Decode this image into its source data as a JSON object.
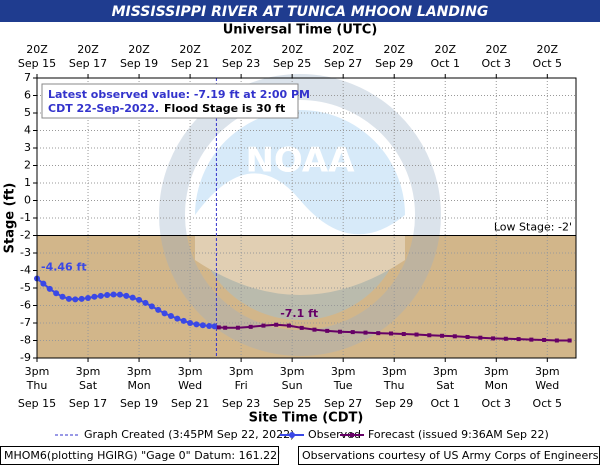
{
  "chart_data": {
    "type": "line",
    "title": "MISSISSIPPI RIVER AT TUNICA MHOON LANDING",
    "top_axis_label": "Universal Time (UTC)",
    "x_label": "Site Time (CDT)",
    "y_label": "Stage (ft)",
    "xlim": [
      "2022-09-15T15:00",
      "2022-10-06T18:00"
    ],
    "xticks": [
      {
        "value": "2022-09-15T15:00",
        "label": "3pm",
        "weekday": "Thu",
        "date": "Sep 15",
        "utc": "20Z"
      },
      {
        "value": "2022-09-17T15:00",
        "label": "3pm",
        "weekday": "Sat",
        "date": "Sep 17",
        "utc": "20Z"
      },
      {
        "value": "2022-09-19T15:00",
        "label": "3pm",
        "weekday": "Mon",
        "date": "Sep 19",
        "utc": "20Z"
      },
      {
        "value": "2022-09-21T15:00",
        "label": "3pm",
        "weekday": "Wed",
        "date": "Sep 21",
        "utc": "20Z"
      },
      {
        "value": "2022-09-23T15:00",
        "label": "3pm",
        "weekday": "Fri",
        "date": "Sep 23",
        "utc": "20Z"
      },
      {
        "value": "2022-09-25T15:00",
        "label": "3pm",
        "weekday": "Sun",
        "date": "Sep 25",
        "utc": "20Z"
      },
      {
        "value": "2022-09-27T15:00",
        "label": "3pm",
        "weekday": "Tue",
        "date": "Sep 27",
        "utc": "20Z"
      },
      {
        "value": "2022-09-29T15:00",
        "label": "3pm",
        "weekday": "Thu",
        "date": "Sep 29",
        "utc": "20Z"
      },
      {
        "value": "2022-10-01T15:00",
        "label": "3pm",
        "weekday": "Sat",
        "date": "Oct 1",
        "utc": "20Z"
      },
      {
        "value": "2022-10-03T15:00",
        "label": "3pm",
        "weekday": "Mon",
        "date": "Oct 3",
        "utc": "20Z"
      },
      {
        "value": "2022-10-05T15:00",
        "label": "3pm",
        "weekday": "Wed",
        "date": "Oct 5",
        "utc": "20Z"
      }
    ],
    "ylim": [
      -9,
      7
    ],
    "yticks": [
      7,
      6,
      5,
      4,
      3,
      2,
      1,
      0,
      -1,
      -2,
      -3,
      -4,
      -5,
      -6,
      -7,
      -8,
      -9
    ],
    "grid": true,
    "threshold": {
      "value": -2,
      "label": "Low Stage: -2'",
      "color": "#d2b68a"
    },
    "created": {
      "x": "2022-09-22T15:45",
      "label": "Graph Created (3:45PM Sep 22, 2022)",
      "color": "#3333cc"
    },
    "info": {
      "line1": "Latest observed value: -7.19 ft at 2:00 PM",
      "line2": "CDT 22-Sep-2022.",
      "line3": "Flood Stage is 30 ft"
    },
    "logo": "NOAA",
    "series": [
      {
        "name": "Observed",
        "color": "#3a48e6",
        "marker": "circle",
        "x": [
          "2022-09-15T15:00",
          "2022-09-15T21:00",
          "2022-09-16T03:00",
          "2022-09-16T09:00",
          "2022-09-16T15:00",
          "2022-09-16T21:00",
          "2022-09-17T03:00",
          "2022-09-17T09:00",
          "2022-09-17T15:00",
          "2022-09-17T21:00",
          "2022-09-18T03:00",
          "2022-09-18T09:00",
          "2022-09-18T15:00",
          "2022-09-18T21:00",
          "2022-09-19T03:00",
          "2022-09-19T09:00",
          "2022-09-19T15:00",
          "2022-09-19T21:00",
          "2022-09-20T03:00",
          "2022-09-20T09:00",
          "2022-09-20T15:00",
          "2022-09-20T21:00",
          "2022-09-21T03:00",
          "2022-09-21T09:00",
          "2022-09-21T15:00",
          "2022-09-21T21:00",
          "2022-09-22T03:00",
          "2022-09-22T09:00",
          "2022-09-22T14:00"
        ],
        "values": [
          -4.46,
          -4.75,
          -5.05,
          -5.3,
          -5.5,
          -5.62,
          -5.65,
          -5.62,
          -5.57,
          -5.5,
          -5.45,
          -5.4,
          -5.37,
          -5.38,
          -5.45,
          -5.55,
          -5.68,
          -5.85,
          -6.05,
          -6.25,
          -6.45,
          -6.6,
          -6.75,
          -6.88,
          -7.0,
          -7.08,
          -7.13,
          -7.17,
          -7.19
        ],
        "value_labels": [
          "-4.46 ft",
          null,
          null,
          null,
          null,
          null,
          null,
          null,
          null,
          null,
          null,
          null,
          null,
          null,
          null,
          null,
          null,
          null,
          null,
          null,
          null,
          null,
          null,
          null,
          null,
          null,
          null,
          null,
          null
        ]
      },
      {
        "name": "Forecast (issued 9:36AM Sep 22)",
        "color": "#660066",
        "marker": "square",
        "x": [
          "2022-09-22T18:00",
          "2022-09-23T00:00",
          "2022-09-23T12:00",
          "2022-09-24T00:00",
          "2022-09-24T12:00",
          "2022-09-25T00:00",
          "2022-09-25T12:00",
          "2022-09-26T00:00",
          "2022-09-26T12:00",
          "2022-09-27T00:00",
          "2022-09-27T12:00",
          "2022-09-28T00:00",
          "2022-09-28T12:00",
          "2022-09-29T00:00",
          "2022-09-29T12:00",
          "2022-09-30T00:00",
          "2022-09-30T12:00",
          "2022-10-01T00:00",
          "2022-10-01T12:00",
          "2022-10-02T00:00",
          "2022-10-02T12:00",
          "2022-10-03T00:00",
          "2022-10-03T12:00",
          "2022-10-04T00:00",
          "2022-10-04T12:00",
          "2022-10-05T00:00",
          "2022-10-05T12:00",
          "2022-10-06T00:00",
          "2022-10-06T12:00"
        ],
        "values": [
          -7.25,
          -7.27,
          -7.27,
          -7.22,
          -7.15,
          -7.1,
          -7.15,
          -7.28,
          -7.38,
          -7.45,
          -7.5,
          -7.52,
          -7.55,
          -7.58,
          -7.6,
          -7.63,
          -7.66,
          -7.7,
          -7.73,
          -7.76,
          -7.8,
          -7.84,
          -7.88,
          -7.9,
          -7.92,
          -7.95,
          -7.97,
          -8.0,
          -8.0
        ],
        "value_labels": [
          null,
          null,
          null,
          null,
          null,
          "-7.1 ft",
          null,
          null,
          null,
          null,
          null,
          null,
          null,
          null,
          null,
          null,
          null,
          null,
          null,
          null,
          null,
          null,
          null,
          null,
          null,
          null,
          null,
          null,
          null
        ]
      }
    ],
    "footer": {
      "left": "MHOM6(plotting HGIRG) \"Gage 0\" Datum: 161.22'",
      "right": "Observations courtesy of US Army Corps of Engineers"
    }
  }
}
